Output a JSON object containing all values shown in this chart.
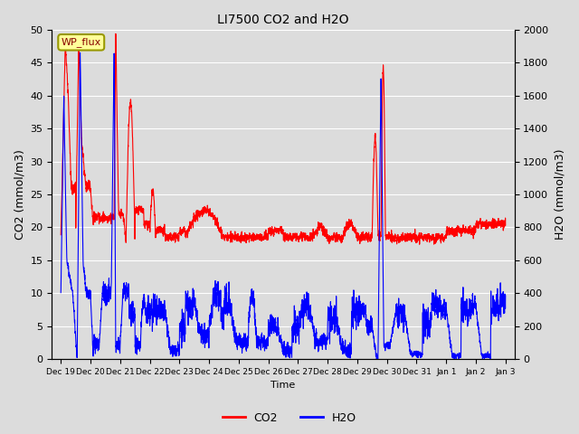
{
  "title": "LI7500 CO2 and H2O",
  "xlabel": "Time",
  "ylabel_left": "CO2 (mmol/m3)",
  "ylabel_right": "H2O (mmol/m3)",
  "ylim_left": [
    0,
    50
  ],
  "ylim_right": [
    0,
    2000
  ],
  "yticks_left": [
    0,
    5,
    10,
    15,
    20,
    25,
    30,
    35,
    40,
    45,
    50
  ],
  "yticks_right": [
    0,
    200,
    400,
    600,
    800,
    1000,
    1200,
    1400,
    1600,
    1800,
    2000
  ],
  "co2_color": "#FF0000",
  "h2o_color": "#0000FF",
  "background_color": "#DCDCDC",
  "grid_color": "#FFFFFF",
  "annotation_text": "WP_flux",
  "legend_co2": "CO2",
  "legend_h2o": "H2O",
  "num_points": 5000
}
